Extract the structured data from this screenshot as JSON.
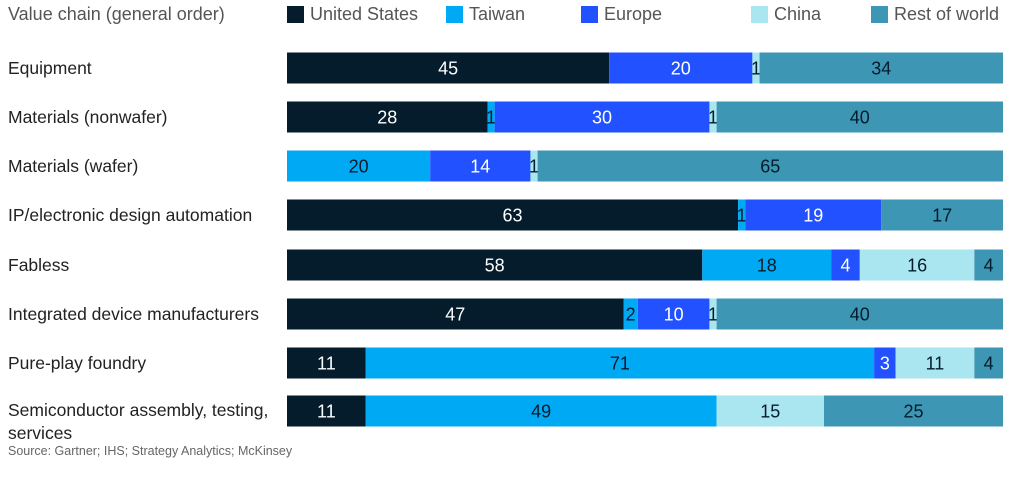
{
  "chart_data": {
    "type": "bar",
    "orientation": "horizontal",
    "stacked": true,
    "header": "Value chain (general order)",
    "categories": [
      "Equipment",
      "Materials (nonwafer)",
      "Materials (wafer)",
      "IP/electronic design automation",
      "Fabless",
      "Integrated device manufacturers",
      "Pure-play foundry",
      "Semiconductor assembly, testing, services"
    ],
    "xlim": [
      0,
      100
    ],
    "grid": false,
    "legend_placement": "top",
    "series": [
      {
        "name": "United States",
        "color": "#051c2c",
        "label_color": "#ffffff",
        "values": [
          45,
          28,
          null,
          63,
          58,
          47,
          11,
          11
        ]
      },
      {
        "name": "Taiwan",
        "color": "#00a9f4",
        "label_color": "#051c2c",
        "values": [
          null,
          1,
          20,
          1,
          18,
          2,
          71,
          49
        ]
      },
      {
        "name": "Europe",
        "color": "#2251ff",
        "label_color": "#ffffff",
        "values": [
          20,
          30,
          14,
          19,
          4,
          10,
          3,
          null
        ]
      },
      {
        "name": "China",
        "color": "#aae6f0",
        "label_color": "#051c2c",
        "values": [
          1,
          1,
          1,
          null,
          16,
          1,
          11,
          15
        ]
      },
      {
        "name": "Rest of world",
        "color": "#3c96b4",
        "label_color": "#051c2c",
        "values": [
          34,
          40,
          65,
          17,
          4,
          40,
          4,
          25
        ]
      }
    ],
    "source": "Source: Gartner; IHS; Strategy Analytics; McKinsey"
  }
}
